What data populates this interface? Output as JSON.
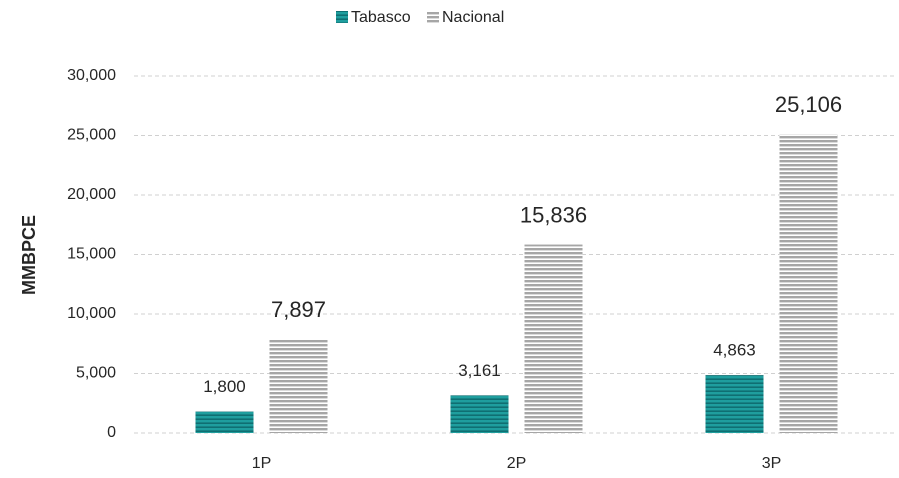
{
  "chart_data": {
    "type": "bar",
    "y_label": "MMBPCE",
    "categories": [
      "1P",
      "2P",
      "3P"
    ],
    "series": [
      {
        "name": "Tabasco",
        "color": "#1f9e9e",
        "values": [
          1800,
          3161,
          4863
        ],
        "value_labels": [
          "1,800",
          "3,161",
          "4,863"
        ]
      },
      {
        "name": "Nacional",
        "color": "#a6a6a6",
        "values": [
          7897,
          15836,
          25106
        ],
        "value_labels": [
          "7,897",
          "15,836",
          "25,106"
        ]
      }
    ],
    "ylim": [
      0,
      30000
    ],
    "yticks": [
      0,
      {
        "value": 5000,
        "label": "5,000"
      },
      {
        "value": 10000,
        "label": "10,000"
      },
      {
        "value": 15000,
        "label": "15,000"
      },
      {
        "value": 20000,
        "label": "20,000"
      },
      {
        "value": 25000,
        "label": "25,000"
      },
      {
        "value": 30000,
        "label": "30,000"
      }
    ],
    "grid": true,
    "legend": "top"
  }
}
